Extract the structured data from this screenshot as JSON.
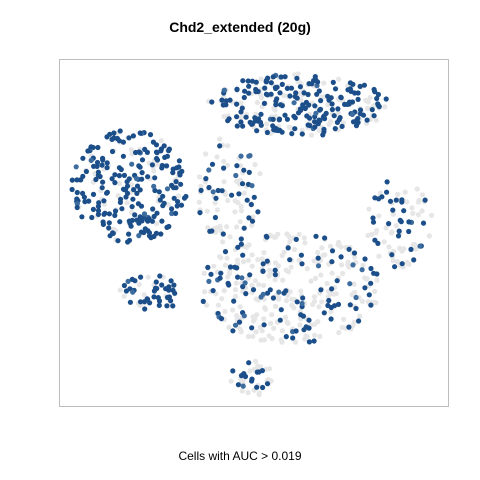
{
  "chart_data": {
    "type": "scatter",
    "title": "Chd2_extended (20g)",
    "xlabel": "Cells with AUC > 0.019",
    "ylabel": "",
    "grid": false,
    "legend": "none",
    "xlim": [
      0,
      100
    ],
    "ylim": [
      0,
      100
    ],
    "colors": {
      "high": "#1c4f8a",
      "mid": "#3d6c9e",
      "low": "#e6e6e6",
      "frame": "#bdbdbd"
    },
    "clusters": [
      {
        "name": "top-right",
        "x": [
          38,
          85
        ],
        "y": [
          78,
          96
        ],
        "n": 300,
        "high": 0.6
      },
      {
        "name": "left",
        "x": [
          3,
          33
        ],
        "y": [
          47,
          80
        ],
        "n": 260,
        "high": 0.75
      },
      {
        "name": "center-left",
        "x": [
          35,
          52
        ],
        "y": [
          47,
          78
        ],
        "n": 90,
        "high": 0.3
      },
      {
        "name": "right",
        "x": [
          79,
          96
        ],
        "y": [
          40,
          66
        ],
        "n": 80,
        "high": 0.4
      },
      {
        "name": "bottom-center",
        "x": [
          36,
          83
        ],
        "y": [
          18,
          50
        ],
        "n": 340,
        "high": 0.25
      },
      {
        "name": "small-left",
        "x": [
          15,
          31
        ],
        "y": [
          27,
          38
        ],
        "n": 55,
        "high": 0.7
      },
      {
        "name": "bottom-tail",
        "x": [
          44,
          55
        ],
        "y": [
          3,
          13
        ],
        "n": 40,
        "high": 0.35
      }
    ]
  }
}
